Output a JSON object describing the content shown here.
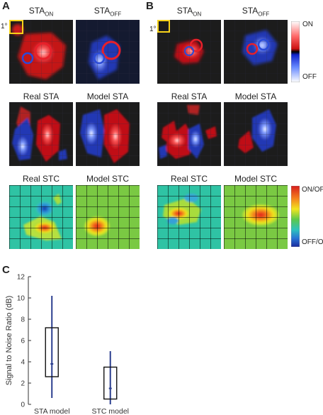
{
  "panel_a": {
    "letter": "A",
    "sta_on": {
      "base": "STA",
      "sub": "ON"
    },
    "sta_off": {
      "base": "STA",
      "sub": "OFF"
    },
    "scale_label": "1°",
    "real_sta": "Real STA",
    "model_sta": "Model STA",
    "real_stc": "Real STC",
    "model_stc": "Model STC"
  },
  "panel_b": {
    "letter": "B",
    "sta_on": {
      "base": "STA",
      "sub": "ON"
    },
    "sta_off": {
      "base": "STA",
      "sub": "OFF"
    },
    "scale_label": "1°",
    "real_sta": "Real STA",
    "model_sta": "Model STA",
    "real_stc": "Real STC",
    "model_stc": "Model STC"
  },
  "colorbars": {
    "sta": {
      "top": "ON",
      "bottom": "OFF"
    },
    "stc": {
      "top": "ON/OFF",
      "bottom": "OFF/ON"
    }
  },
  "colors": {
    "on": "#e8202a",
    "off": "#2a4bd8",
    "map_bg": "#1c1c1c",
    "stc_bg": "#2fc3a4",
    "model_stc_bg": "#7ac943",
    "scale_box": "#f7d21a",
    "box_stroke": "#2b3f8f"
  },
  "panel_c": {
    "letter": "C",
    "chart_data": {
      "type": "box",
      "title": "",
      "xlabel": "",
      "ylabel": "Signal to Noise Ratio (dB)",
      "ylim": [
        0,
        12
      ],
      "yticks": [
        0,
        2,
        4,
        6,
        8,
        10,
        12
      ],
      "categories": [
        "STA model",
        "STC model"
      ],
      "boxes": [
        {
          "category": "STA model",
          "whisker_low": 0.6,
          "q1": 2.6,
          "median": 3.8,
          "q3": 7.2,
          "whisker_high": 10.2
        },
        {
          "category": "STC model",
          "whisker_low": 0.0,
          "q1": 0.5,
          "median": 1.5,
          "q3": 3.5,
          "whisker_high": 5.0
        }
      ]
    }
  }
}
